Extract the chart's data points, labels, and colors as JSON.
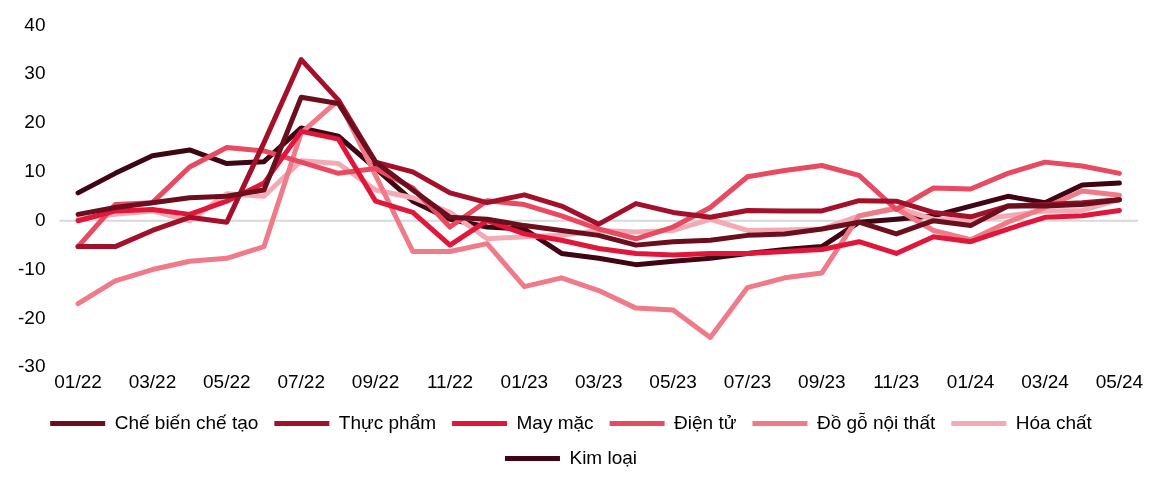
{
  "chart_data": {
    "type": "line",
    "categories": [
      "01/22",
      null,
      "03/22",
      null,
      "05/22",
      null,
      "07/22",
      null,
      "09/22",
      null,
      "11/22",
      null,
      "01/23",
      null,
      "03/23",
      null,
      "05/23",
      null,
      "07/23",
      null,
      "09/23",
      null,
      "11/23",
      null,
      "01/24",
      null,
      "03/24",
      null,
      "05/24"
    ],
    "series": [
      {
        "name": "Chế biến chế tạo",
        "color": "#6b0f1e",
        "values": [
          1.3,
          2.7,
          3.7,
          4.7,
          5,
          6.3,
          25.3,
          24,
          12,
          6.3,
          0.7,
          0.3,
          -1,
          -2,
          -3,
          -5,
          -4.3,
          -4,
          -3,
          -2.7,
          -1.7,
          -0.3,
          -2.7,
          0,
          -1,
          3,
          3,
          3.3,
          4.3
        ]
      },
      {
        "name": "Thực phẩm",
        "color": "#a3102a",
        "values": [
          -5.3,
          -5.3,
          -2,
          0.7,
          -0.3,
          16,
          33,
          24.7,
          12,
          10,
          5.7,
          3.7,
          5.3,
          3,
          -0.7,
          3.5,
          1.7,
          0.7,
          2.1,
          2,
          2,
          4.1,
          4,
          1.7,
          0.8,
          3,
          3.3,
          3.7,
          4.3
        ]
      },
      {
        "name": "May mặc",
        "color": "#e0163a",
        "values": [
          0,
          2,
          2.3,
          1.3,
          4,
          7.7,
          18.3,
          16.7,
          4,
          1.7,
          -5,
          0,
          -2.7,
          -4,
          -5.7,
          -6.7,
          -7,
          -6.7,
          -6.7,
          -6.3,
          -5.9,
          -4.3,
          -6.7,
          -3.3,
          -4.3,
          -1.7,
          0.7,
          1,
          2.1
        ]
      },
      {
        "name": "Điện tử",
        "color": "#e84a62",
        "values": [
          -5.3,
          3.3,
          3.7,
          11,
          15,
          14.3,
          12,
          9.7,
          10.7,
          6.7,
          -1.3,
          4.1,
          3.3,
          1,
          -1.7,
          -3.7,
          -1.3,
          2.7,
          9,
          10.3,
          11.3,
          9.3,
          2.3,
          6.7,
          6.5,
          9.7,
          12,
          11.2,
          9.7
        ]
      },
      {
        "name": "Đồ gỗ nội thất",
        "color": "#ef7a88",
        "values": [
          -17,
          -12.3,
          -10,
          -8.3,
          -7.7,
          -5.3,
          18,
          24.7,
          9.3,
          -6.3,
          -6.3,
          -4.7,
          -13.5,
          -11.7,
          -14.3,
          -17.9,
          -18.3,
          -23.9,
          -13.7,
          -11.7,
          -10.7,
          1,
          2.5,
          -2,
          -3.9,
          -0.3,
          2.7,
          6.1,
          5.2
        ]
      },
      {
        "name": "Hóa chất",
        "color": "#f4aab4",
        "values": [
          0.3,
          1.3,
          2,
          0,
          5.5,
          5,
          12.3,
          11.7,
          6.3,
          4.7,
          1.7,
          -3.7,
          -3.3,
          -3,
          -2,
          -2.3,
          -2,
          0.3,
          -2,
          -1.9,
          -1.7,
          1,
          2.7,
          0.3,
          0,
          1,
          2,
          2.1,
          4.3
        ]
      },
      {
        "name": "Kim loại",
        "color": "#3f0512",
        "values": [
          5.7,
          9.7,
          13.3,
          14.5,
          11.7,
          12.1,
          19,
          17.3,
          10.7,
          4,
          0.3,
          -1.3,
          -1.7,
          -6.7,
          -7.7,
          -9,
          -8.3,
          -7.7,
          -6.7,
          -5.9,
          -5.3,
          -0.3,
          0.3,
          1,
          3,
          5,
          3.7,
          7.3,
          7.7
        ]
      }
    ],
    "ylim": [
      -30,
      40
    ],
    "yticks": [
      -30,
      -20,
      -10,
      0,
      10,
      20,
      30,
      40
    ],
    "ref_lines": [
      {
        "axis": "y",
        "value": 0,
        "color": "#d9d9d9"
      }
    ],
    "grid": false,
    "legend": "bottom"
  }
}
